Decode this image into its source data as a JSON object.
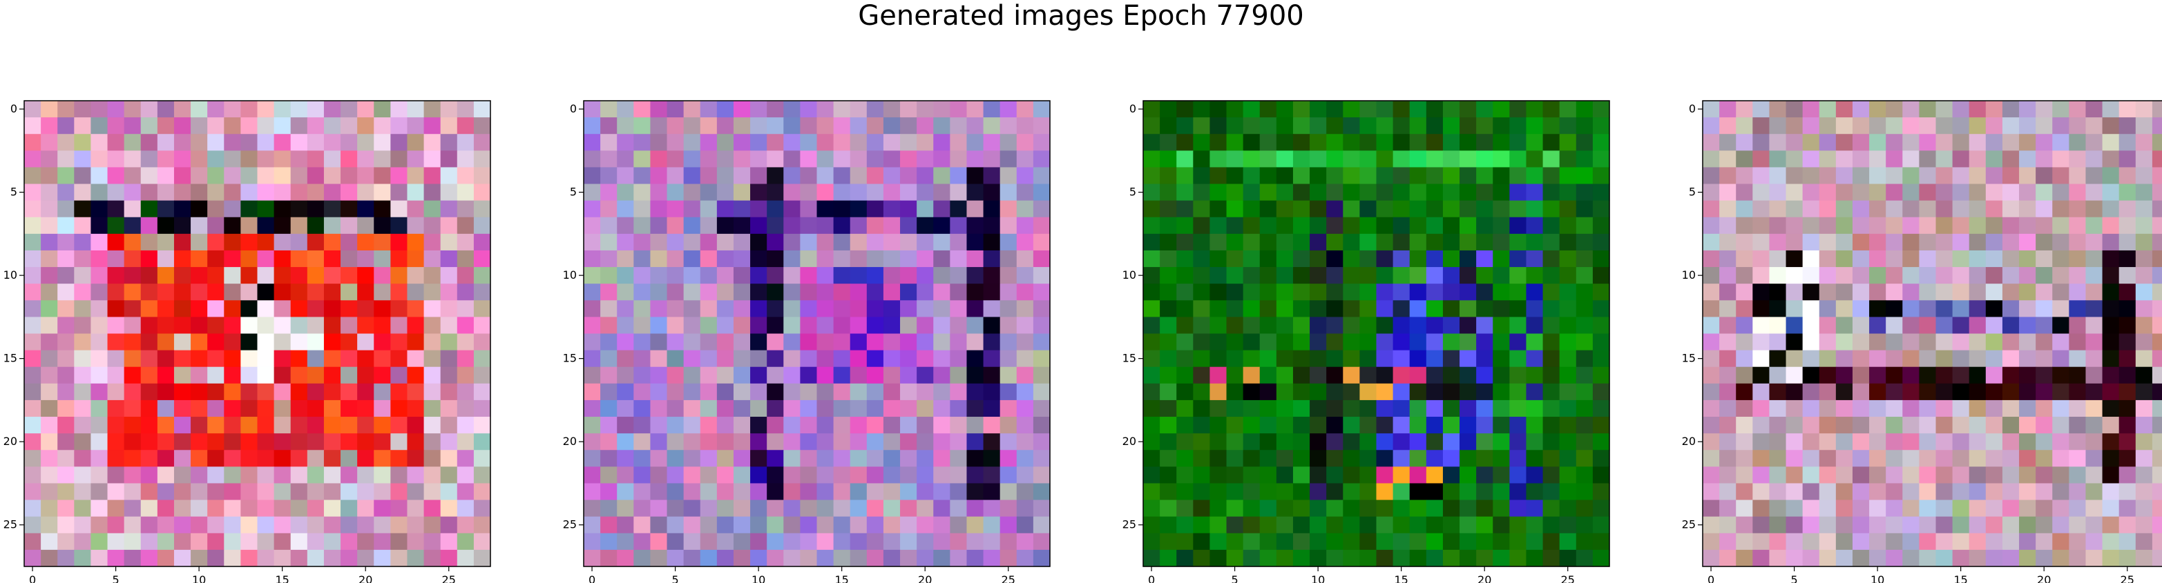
{
  "figure": {
    "title": "Generated images Epoch 77900"
  },
  "chart_data": [
    {
      "type": "heatmap",
      "title": "",
      "xlabel": "",
      "ylabel": "",
      "grid": false,
      "grid_size": 28,
      "xlim": [
        -0.5,
        27.5
      ],
      "ylim": [
        27.5,
        -0.5
      ],
      "xticks": [
        0,
        5,
        10,
        15,
        20,
        25
      ],
      "yticks": [
        0,
        5,
        10,
        15,
        20,
        25
      ],
      "palette": [
        "#c9a0b8",
        "#e070b0",
        "#b878b8",
        "#f0c0d8",
        "#a8b0a0",
        "#d8d0e8",
        "#c08098",
        "#e8a8c8"
      ],
      "shape": [
        {
          "rows": [
            6,
            7
          ],
          "cols": [
            3,
            22
          ],
          "colors": [
            "#000020",
            "#101040",
            "#004000",
            "#200010",
            "#000000"
          ]
        },
        {
          "rows": [
            8,
            21
          ],
          "cols": [
            5,
            23
          ],
          "colors": [
            "#ff2020",
            "#e01010",
            "#ff4040",
            "#ff6020",
            "#d02030",
            "#ff1010"
          ]
        },
        {
          "rows": [
            11,
            16
          ],
          "cols": [
            13,
            14
          ],
          "colors": [
            "#ffffff",
            "#000000",
            "#f0a0c0",
            "#e0e0f0"
          ]
        },
        {
          "rows": [
            13,
            14
          ],
          "cols": [
            15,
            17
          ],
          "colors": [
            "#f0e0f0",
            "#c0c0d0",
            "#ffffff"
          ]
        }
      ]
    },
    {
      "type": "heatmap",
      "title": "",
      "xlabel": "",
      "ylabel": "",
      "grid": false,
      "grid_size": 28,
      "xlim": [
        -0.5,
        27.5
      ],
      "ylim": [
        27.5,
        -0.5
      ],
      "xticks": [
        0,
        5,
        10,
        15,
        20,
        25
      ],
      "yticks": [
        0,
        5,
        10,
        15,
        20,
        25
      ],
      "palette": [
        "#b070c0",
        "#9080c8",
        "#c088d0",
        "#d070b8",
        "#a0a0d8",
        "#c0a0c8",
        "#8878c0",
        "#e090c8",
        "#b0b0b0"
      ],
      "shape": [
        {
          "rows": [
            4,
            23
          ],
          "cols": [
            10,
            11
          ],
          "colors": [
            "#3010a0",
            "#000020",
            "#200040",
            "#501080",
            "#100030"
          ]
        },
        {
          "rows": [
            4,
            23
          ],
          "cols": [
            23,
            24
          ],
          "colors": [
            "#000030",
            "#2a1060",
            "#100020",
            "#4020a0"
          ]
        },
        {
          "rows": [
            6,
            7
          ],
          "cols": [
            8,
            23
          ],
          "colors": [
            "#6030b0",
            "#2a1870",
            "#8040c0",
            "#000030"
          ]
        },
        {
          "rows": [
            10,
            16
          ],
          "cols": [
            13,
            20
          ],
          "colors": [
            "#d040c0",
            "#4020c0",
            "#a060e0",
            "#c050b0"
          ]
        }
      ]
    },
    {
      "type": "heatmap",
      "title": "",
      "xlabel": "",
      "ylabel": "",
      "grid": false,
      "grid_size": 28,
      "xlim": [
        -0.5,
        27.5
      ],
      "ylim": [
        27.5,
        -0.5
      ],
      "xticks": [
        0,
        5,
        10,
        15,
        20,
        25
      ],
      "yticks": [
        0,
        5,
        10,
        15,
        20,
        25
      ],
      "palette": [
        "#0a6a0a",
        "#087808",
        "#0c5c0c",
        "#128a12",
        "#066006",
        "#0e7010"
      ],
      "shape": [
        {
          "rows": [
            3,
            3
          ],
          "cols": [
            2,
            24
          ],
          "colors": [
            "#30d050",
            "#20c040",
            "#40e060",
            "#18b030"
          ]
        },
        {
          "rows": [
            4,
            24
          ],
          "cols": [
            22,
            23
          ],
          "colors": [
            "#3030c0",
            "#1a9a1a",
            "#2020a0",
            "#20b030"
          ]
        },
        {
          "rows": [
            5,
            23
          ],
          "cols": [
            10,
            11
          ],
          "colors": [
            "#000010",
            "#203020",
            "#103010",
            "#202060",
            "#184018"
          ]
        },
        {
          "rows": [
            9,
            23
          ],
          "cols": [
            14,
            20
          ],
          "colors": [
            "#2020c0",
            "#4040e0",
            "#102040",
            "#30a030",
            "#6060ff"
          ]
        },
        {
          "rows": [
            16,
            17
          ],
          "cols": [
            3,
            19
          ],
          "colors": [
            "#000010",
            "#102010",
            "#f0a030",
            "#e04080",
            "#203020"
          ]
        },
        {
          "rows": [
            22,
            23
          ],
          "cols": [
            14,
            17
          ],
          "colors": [
            "#ffb030",
            "#e03090",
            "#20c040",
            "#000000"
          ]
        }
      ]
    },
    {
      "type": "heatmap",
      "title": "",
      "xlabel": "",
      "ylabel": "",
      "grid": false,
      "grid_size": 28,
      "xlim": [
        -0.5,
        27.5
      ],
      "ylim": [
        27.5,
        -0.5
      ],
      "xticks": [
        0,
        5,
        10,
        15,
        20,
        25
      ],
      "yticks": [
        0,
        5,
        10,
        15,
        20,
        25
      ],
      "palette": [
        "#d0a8c0",
        "#c090b0",
        "#b8b0c0",
        "#e0b0d0",
        "#a0a890",
        "#c8c0d8",
        "#d898c0",
        "#b08090"
      ],
      "shape": [
        {
          "rows": [
            12,
            13
          ],
          "cols": [
            2,
            24
          ],
          "colors": [
            "#8080d0",
            "#c0c0f0",
            "#4040a0",
            "#000000",
            "#c060a0"
          ]
        },
        {
          "rows": [
            16,
            17
          ],
          "cols": [
            2,
            27
          ],
          "colors": [
            "#400010",
            "#000000",
            "#300820",
            "#200000",
            "#501030"
          ]
        },
        {
          "rows": [
            9,
            22
          ],
          "cols": [
            24,
            25
          ],
          "colors": [
            "#000000",
            "#300010",
            "#600020",
            "#100000"
          ]
        },
        {
          "rows": [
            9,
            16
          ],
          "cols": [
            3,
            6
          ],
          "colors": [
            "#f0f0ff",
            "#c0c8e0",
            "#000000",
            "#ffffff"
          ]
        }
      ]
    }
  ]
}
